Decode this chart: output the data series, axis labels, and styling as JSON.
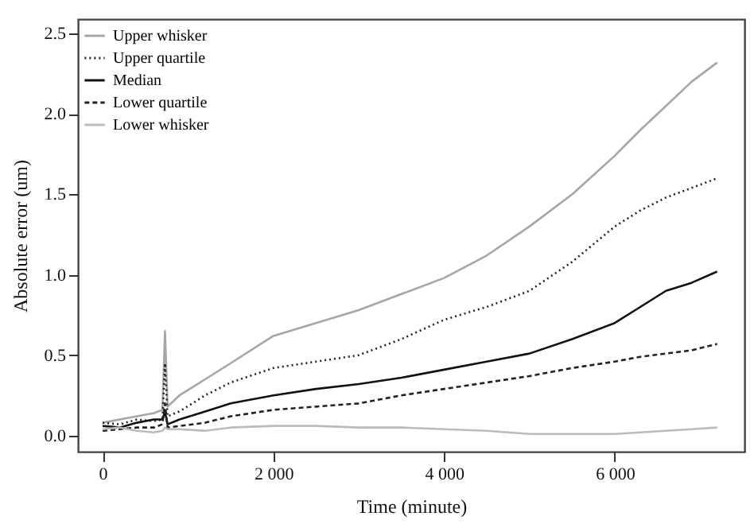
{
  "chart_data": {
    "type": "line",
    "xlabel": "Time (minute)",
    "ylabel": "Absolute error (um)",
    "x": [
      0,
      200,
      400,
      600,
      700,
      730,
      760,
      900,
      1200,
      1500,
      2000,
      2500,
      3000,
      3500,
      4000,
      4500,
      5000,
      5500,
      6000,
      6300,
      6600,
      6900,
      7200
    ],
    "series": [
      {
        "name": "Upper whisker",
        "color": "#a6a6a6",
        "line_style": "solid",
        "values": [
          0.08,
          0.1,
          0.12,
          0.14,
          0.16,
          0.65,
          0.18,
          0.25,
          0.35,
          0.45,
          0.62,
          0.7,
          0.78,
          0.88,
          0.98,
          1.12,
          1.3,
          1.5,
          1.74,
          1.9,
          2.05,
          2.2,
          2.32
        ]
      },
      {
        "name": "Upper quartile",
        "color": "#222222",
        "line_style": "dotted",
        "values": [
          0.08,
          0.07,
          0.1,
          0.09,
          0.1,
          0.45,
          0.12,
          0.15,
          0.25,
          0.33,
          0.42,
          0.46,
          0.5,
          0.6,
          0.72,
          0.8,
          0.9,
          1.08,
          1.3,
          1.4,
          1.48,
          1.54,
          1.6
        ]
      },
      {
        "name": "Median",
        "color": "#111111",
        "line_style": "solid",
        "values": [
          0.06,
          0.05,
          0.08,
          0.1,
          0.1,
          0.15,
          0.07,
          0.1,
          0.15,
          0.2,
          0.25,
          0.29,
          0.32,
          0.36,
          0.41,
          0.46,
          0.51,
          0.6,
          0.7,
          0.8,
          0.9,
          0.95,
          1.02
        ]
      },
      {
        "name": "Lower quartile",
        "color": "#222222",
        "line_style": "dashed",
        "values": [
          0.03,
          0.04,
          0.05,
          0.05,
          0.07,
          0.2,
          0.05,
          0.06,
          0.08,
          0.12,
          0.16,
          0.18,
          0.2,
          0.25,
          0.29,
          0.33,
          0.37,
          0.42,
          0.46,
          0.49,
          0.51,
          0.53,
          0.57
        ]
      },
      {
        "name": "Lower whisker",
        "color": "#bbbbbb",
        "line_style": "solid",
        "values": [
          0.04,
          0.05,
          0.03,
          0.02,
          0.03,
          0.05,
          0.04,
          0.04,
          0.03,
          0.05,
          0.06,
          0.06,
          0.05,
          0.05,
          0.04,
          0.03,
          0.01,
          0.01,
          0.01,
          0.02,
          0.03,
          0.04,
          0.05
        ]
      }
    ],
    "xlim": [
      -290,
      7520
    ],
    "ylim": [
      -0.1,
      2.59
    ],
    "xticks": [
      0,
      {
        "value": 2000,
        "label": "2 000"
      },
      {
        "value": 4000,
        "label": "4 000"
      },
      {
        "value": 6000,
        "label": "6 000"
      }
    ],
    "yticks": [
      {
        "value": 0,
        "label": "0.0"
      },
      0.5,
      {
        "value": 1,
        "label": "1.0"
      },
      1.5,
      {
        "value": 2,
        "label": "2.0"
      },
      2.5
    ],
    "legend": "top left"
  }
}
